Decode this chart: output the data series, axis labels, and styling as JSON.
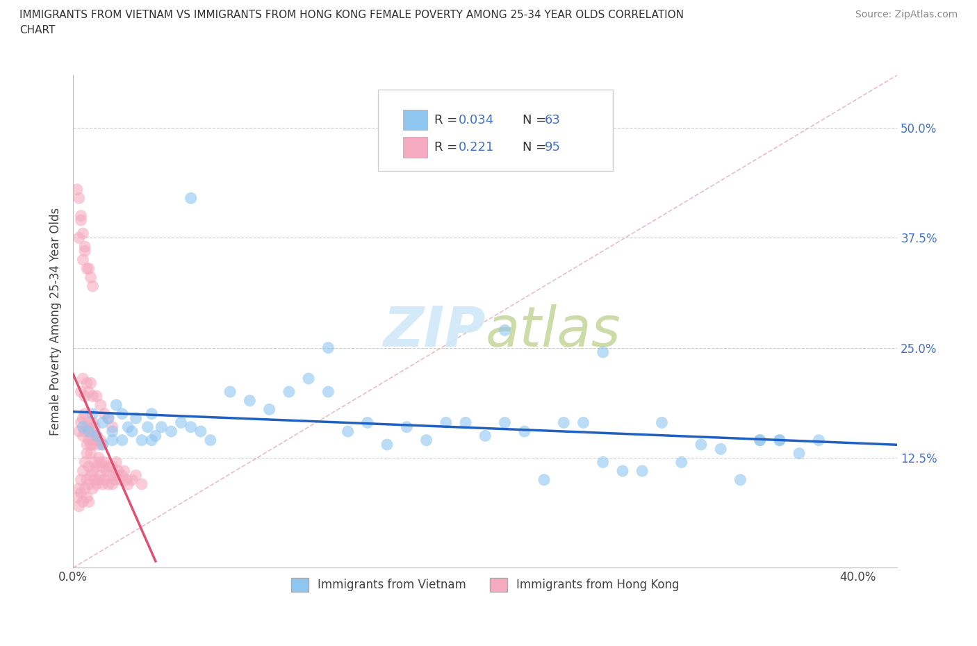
{
  "title": "IMMIGRANTS FROM VIETNAM VS IMMIGRANTS FROM HONG KONG FEMALE POVERTY AMONG 25-34 YEAR OLDS CORRELATION\nCHART",
  "source": "Source: ZipAtlas.com",
  "ylabel": "Female Poverty Among 25-34 Year Olds",
  "xlim": [
    0.0,
    0.42
  ],
  "ylim": [
    0.0,
    0.56
  ],
  "xticks": [
    0.0,
    0.1,
    0.2,
    0.3,
    0.4
  ],
  "xticklabels": [
    "0.0%",
    "",
    "",
    "",
    "40.0%"
  ],
  "yticks": [
    0.0,
    0.125,
    0.25,
    0.375,
    0.5
  ],
  "yticklabels": [
    "",
    "12.5%",
    "25.0%",
    "37.5%",
    "50.0%"
  ],
  "grid_color": "#cccccc",
  "R_vietnam": 0.034,
  "N_vietnam": 63,
  "R_hongkong": 0.221,
  "N_hongkong": 95,
  "color_vietnam": "#8ec6f0",
  "color_hongkong": "#f5aabf",
  "trendline_vietnam_color": "#2060c0",
  "trendline_hongkong_color": "#e05070",
  "diag_color": "#e0a0b0",
  "legend_label_vietnam": "Immigrants from Vietnam",
  "legend_label_hongkong": "Immigrants from Hong Kong",
  "vietnam_x": [
    0.005,
    0.008,
    0.01,
    0.012,
    0.015,
    0.015,
    0.018,
    0.02,
    0.022,
    0.025,
    0.025,
    0.028,
    0.03,
    0.032,
    0.035,
    0.038,
    0.04,
    0.042,
    0.045,
    0.05,
    0.055,
    0.06,
    0.065,
    0.07,
    0.08,
    0.09,
    0.1,
    0.11,
    0.12,
    0.13,
    0.14,
    0.15,
    0.16,
    0.17,
    0.18,
    0.19,
    0.2,
    0.21,
    0.22,
    0.23,
    0.24,
    0.25,
    0.26,
    0.27,
    0.28,
    0.29,
    0.3,
    0.31,
    0.32,
    0.33,
    0.34,
    0.35,
    0.36,
    0.37,
    0.06,
    0.04,
    0.22,
    0.27,
    0.36,
    0.13,
    0.02,
    0.35,
    0.38
  ],
  "vietnam_y": [
    0.16,
    0.155,
    0.175,
    0.15,
    0.165,
    0.14,
    0.17,
    0.155,
    0.185,
    0.145,
    0.175,
    0.16,
    0.155,
    0.17,
    0.145,
    0.16,
    0.175,
    0.15,
    0.16,
    0.155,
    0.165,
    0.16,
    0.155,
    0.145,
    0.2,
    0.19,
    0.18,
    0.2,
    0.215,
    0.2,
    0.155,
    0.165,
    0.14,
    0.16,
    0.145,
    0.165,
    0.165,
    0.15,
    0.165,
    0.155,
    0.1,
    0.165,
    0.165,
    0.12,
    0.11,
    0.11,
    0.165,
    0.12,
    0.14,
    0.135,
    0.1,
    0.145,
    0.145,
    0.13,
    0.42,
    0.145,
    0.27,
    0.245,
    0.145,
    0.25,
    0.145,
    0.145,
    0.145
  ],
  "hongkong_x": [
    0.002,
    0.003,
    0.003,
    0.004,
    0.004,
    0.005,
    0.005,
    0.006,
    0.006,
    0.007,
    0.007,
    0.007,
    0.008,
    0.008,
    0.008,
    0.009,
    0.009,
    0.01,
    0.01,
    0.01,
    0.011,
    0.011,
    0.012,
    0.012,
    0.013,
    0.013,
    0.014,
    0.014,
    0.015,
    0.015,
    0.016,
    0.016,
    0.017,
    0.018,
    0.018,
    0.019,
    0.02,
    0.02,
    0.021,
    0.022,
    0.022,
    0.023,
    0.024,
    0.025,
    0.026,
    0.027,
    0.028,
    0.03,
    0.032,
    0.035,
    0.003,
    0.004,
    0.005,
    0.005,
    0.006,
    0.006,
    0.007,
    0.007,
    0.008,
    0.008,
    0.009,
    0.009,
    0.01,
    0.01,
    0.011,
    0.011,
    0.012,
    0.013,
    0.014,
    0.015,
    0.004,
    0.005,
    0.006,
    0.007,
    0.008,
    0.009,
    0.01,
    0.012,
    0.014,
    0.016,
    0.018,
    0.02,
    0.003,
    0.004,
    0.005,
    0.006,
    0.007,
    0.008,
    0.009,
    0.01,
    0.002,
    0.003,
    0.004,
    0.005,
    0.006
  ],
  "hongkong_y": [
    0.08,
    0.09,
    0.07,
    0.085,
    0.1,
    0.075,
    0.11,
    0.09,
    0.12,
    0.08,
    0.1,
    0.13,
    0.095,
    0.115,
    0.075,
    0.105,
    0.13,
    0.09,
    0.11,
    0.14,
    0.1,
    0.12,
    0.095,
    0.115,
    0.1,
    0.125,
    0.105,
    0.12,
    0.095,
    0.115,
    0.1,
    0.12,
    0.11,
    0.095,
    0.115,
    0.105,
    0.095,
    0.115,
    0.1,
    0.105,
    0.12,
    0.11,
    0.1,
    0.105,
    0.11,
    0.1,
    0.095,
    0.1,
    0.105,
    0.095,
    0.155,
    0.165,
    0.15,
    0.17,
    0.155,
    0.175,
    0.14,
    0.16,
    0.145,
    0.165,
    0.14,
    0.158,
    0.15,
    0.165,
    0.145,
    0.16,
    0.15,
    0.14,
    0.145,
    0.14,
    0.2,
    0.215,
    0.195,
    0.21,
    0.2,
    0.21,
    0.195,
    0.195,
    0.185,
    0.175,
    0.17,
    0.16,
    0.375,
    0.395,
    0.35,
    0.365,
    0.34,
    0.34,
    0.33,
    0.32,
    0.43,
    0.42,
    0.4,
    0.38,
    0.36
  ]
}
